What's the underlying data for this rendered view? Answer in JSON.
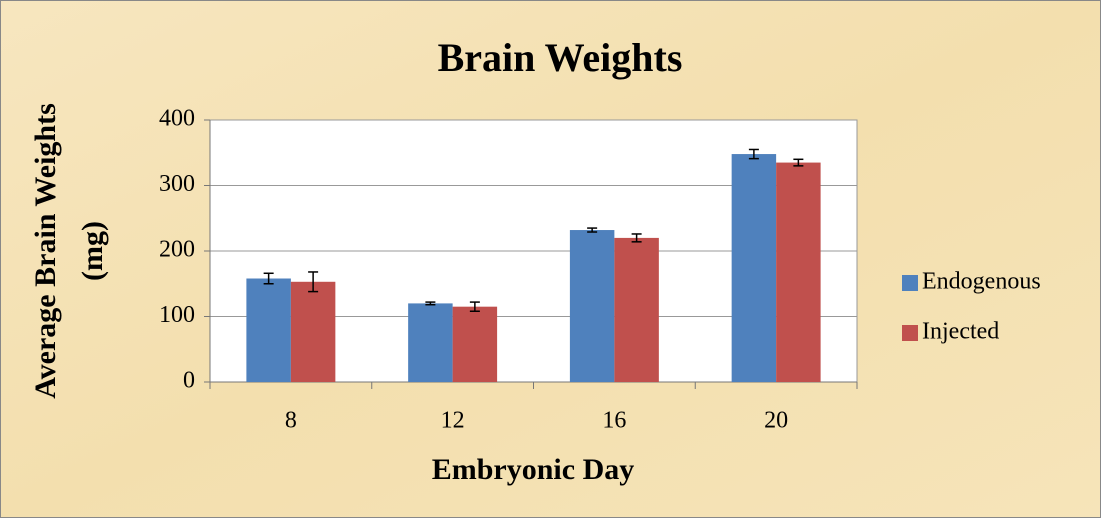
{
  "chart_data": {
    "type": "bar",
    "title": "Brain Weights",
    "xlabel": "Embryonic Day",
    "ylabel": [
      "Average Brain Weights",
      "(mg)"
    ],
    "categories": [
      "8",
      "12",
      "16",
      "20"
    ],
    "series": [
      {
        "name": "Endogenous",
        "color": "#4f81bd",
        "values": [
          158,
          120,
          232,
          348
        ],
        "errors": [
          8,
          2,
          3,
          7
        ]
      },
      {
        "name": "Injected",
        "color": "#c0504d",
        "values": [
          153,
          115,
          220,
          335
        ],
        "errors": [
          15,
          7,
          6,
          5
        ]
      }
    ],
    "ylim": [
      0,
      400
    ],
    "yticks": [
      0,
      100,
      200,
      300,
      400
    ],
    "grid": true,
    "legend": "right"
  }
}
